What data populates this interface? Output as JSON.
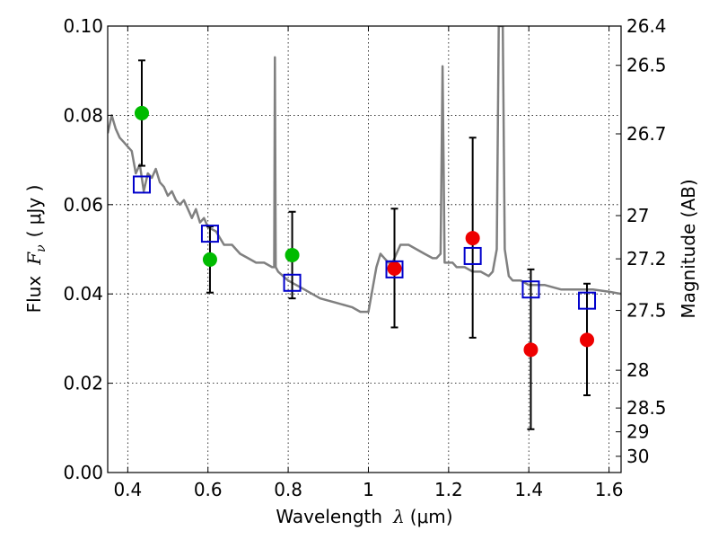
{
  "chart_data": {
    "type": "scatter",
    "xlabel": {
      "prefix": "Wavelength",
      "symbol": "λ",
      "unit": "(μm)"
    },
    "ylabel": {
      "prefix": "Flux",
      "symbol": "F",
      "subscript": "ν",
      "unit": "( μJy )"
    },
    "y2label": "Magnitude (AB)",
    "xlim": [
      0.35,
      1.63
    ],
    "ylim": [
      0.0,
      0.1
    ],
    "grid": true,
    "x_ticks": [
      {
        "v": 0.4,
        "label": "0.4"
      },
      {
        "v": 0.6,
        "label": "0.6"
      },
      {
        "v": 0.8,
        "label": "0.8"
      },
      {
        "v": 1.0,
        "label": "1"
      },
      {
        "v": 1.2,
        "label": "1.2"
      },
      {
        "v": 1.4,
        "label": "1.4"
      },
      {
        "v": 1.6,
        "label": "1.6"
      }
    ],
    "y_ticks": [
      {
        "v": 0.0,
        "label": "0.00"
      },
      {
        "v": 0.02,
        "label": "0.02"
      },
      {
        "v": 0.04,
        "label": "0.04"
      },
      {
        "v": 0.06,
        "label": "0.06"
      },
      {
        "v": 0.08,
        "label": "0.08"
      },
      {
        "v": 0.1,
        "label": "0.10"
      }
    ],
    "y2_ticks": [
      {
        "mag": 26.4,
        "label": "26.4"
      },
      {
        "mag": 26.5,
        "label": "26.5"
      },
      {
        "mag": 26.7,
        "label": "26.7"
      },
      {
        "mag": 27.0,
        "label": "27"
      },
      {
        "mag": 27.2,
        "label": "27.2"
      },
      {
        "mag": 27.5,
        "label": "27.5"
      },
      {
        "mag": 28.0,
        "label": "28"
      },
      {
        "mag": 28.5,
        "label": "28.5"
      },
      {
        "mag": 29.0,
        "label": "29"
      },
      {
        "mag": 30.0,
        "label": "30"
      }
    ],
    "series": [
      {
        "kind": "line",
        "color": "#808080",
        "x": [
          0.35,
          0.36,
          0.37,
          0.38,
          0.39,
          0.4,
          0.41,
          0.42,
          0.43,
          0.44,
          0.45,
          0.46,
          0.47,
          0.48,
          0.49,
          0.5,
          0.51,
          0.52,
          0.53,
          0.54,
          0.55,
          0.56,
          0.57,
          0.58,
          0.59,
          0.6,
          0.62,
          0.64,
          0.66,
          0.68,
          0.7,
          0.72,
          0.74,
          0.76,
          0.765,
          0.767,
          0.769,
          0.775,
          0.8,
          0.84,
          0.88,
          0.92,
          0.96,
          0.98,
          1.0,
          1.02,
          1.03,
          1.04,
          1.05,
          1.06,
          1.08,
          1.1,
          1.12,
          1.14,
          1.16,
          1.17,
          1.18,
          1.185,
          1.19,
          1.2,
          1.21,
          1.22,
          1.24,
          1.26,
          1.28,
          1.3,
          1.31,
          1.32,
          1.325,
          1.335,
          1.34,
          1.35,
          1.36,
          1.38,
          1.4,
          1.44,
          1.48,
          1.52,
          1.56,
          1.6,
          1.63
        ],
        "y": [
          0.076,
          0.08,
          0.077,
          0.075,
          0.074,
          0.073,
          0.072,
          0.067,
          0.069,
          0.063,
          0.067,
          0.066,
          0.068,
          0.065,
          0.064,
          0.062,
          0.063,
          0.061,
          0.06,
          0.061,
          0.059,
          0.057,
          0.059,
          0.056,
          0.057,
          0.055,
          0.054,
          0.051,
          0.051,
          0.049,
          0.048,
          0.047,
          0.047,
          0.046,
          0.046,
          0.093,
          0.046,
          0.045,
          0.043,
          0.041,
          0.039,
          0.038,
          0.037,
          0.036,
          0.036,
          0.046,
          0.049,
          0.048,
          0.047,
          0.047,
          0.051,
          0.051,
          0.05,
          0.049,
          0.048,
          0.048,
          0.049,
          0.091,
          0.047,
          0.047,
          0.047,
          0.046,
          0.046,
          0.045,
          0.045,
          0.044,
          0.045,
          0.05,
          0.1,
          0.1,
          0.05,
          0.044,
          0.043,
          0.043,
          0.042,
          0.042,
          0.041,
          0.041,
          0.041,
          0.0405,
          0.04
        ]
      },
      {
        "kind": "squares",
        "color": "#0000cc",
        "x": [
          0.435,
          0.605,
          0.81,
          1.065,
          1.26,
          1.405,
          1.545
        ],
        "y": [
          0.0645,
          0.0535,
          0.0425,
          0.0455,
          0.0485,
          0.041,
          0.0385
        ]
      },
      {
        "kind": "points",
        "x": [
          0.435,
          0.605,
          0.81,
          1.065,
          1.26,
          1.405,
          1.545
        ],
        "y": [
          0.0805,
          0.0477,
          0.0487,
          0.0457,
          0.0525,
          0.0275,
          0.0297
        ],
        "colors": [
          "#00bb00",
          "#00bb00",
          "#00bb00",
          "#ee0000",
          "#ee0000",
          "#ee0000",
          "#ee0000"
        ],
        "err_low": [
          0.0687,
          0.0403,
          0.039,
          0.0325,
          0.0302,
          0.0097,
          0.0173
        ],
        "err_high": [
          0.0923,
          0.0551,
          0.0584,
          0.0591,
          0.075,
          0.0455,
          0.0423
        ]
      }
    ]
  }
}
